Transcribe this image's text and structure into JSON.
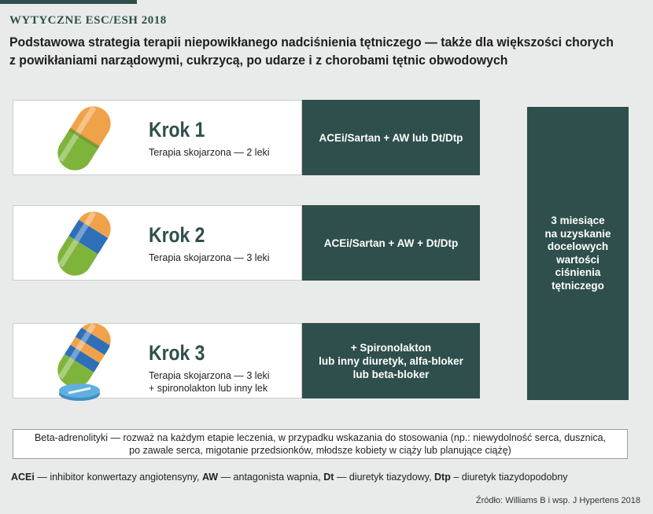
{
  "header": {
    "tag": "WYTYCZNE ESC/ESH 2018",
    "title_line1": "Podstawowa strategia terapii niepowikłanego nadciśnienia tętniczego — także dla większości chorych",
    "title_line2": "z powikłaniami narządowymi, cukrzycą, po udarze i z chorobami tętnic obwodowych"
  },
  "steps": [
    {
      "heading": "Krok 1",
      "desc_lines": [
        "Terapia skojarzona — 2 leki"
      ],
      "therapy_lines": [
        "ACEi/Sartan  +  AW lub Dt/Dtp"
      ]
    },
    {
      "heading": "Krok 2",
      "desc_lines": [
        "Terapia skojarzona — 3 leki"
      ],
      "therapy_lines": [
        "ACEi/Sartan  +  AW + Dt/Dtp"
      ]
    },
    {
      "heading": "Krok 3",
      "desc_lines": [
        "Terapia skojarzona — 3 leki",
        "+ spironolakton lub inny lek"
      ],
      "therapy_lines": [
        "+ Spironolakton",
        "lub inny diuretyk, alfa-bloker",
        "lub beta-bloker"
      ]
    }
  ],
  "target": {
    "lines": [
      "3 miesiące",
      "na uzyskanie",
      "docelowych",
      "wartości",
      "ciśnienia",
      "tętniczego"
    ]
  },
  "note": {
    "line1": "Beta-adrenolityki — rozważ na każdym etapie leczenia, w przypadku wskazania do stosowania (np.: niewydolność serca, dusznica,",
    "line2": "po zawale serca, migotanie przedsionków, młodsze kobiety w ciąży lub planujące ciążę)"
  },
  "legend": {
    "acei_abbr": "ACEi",
    "acei_text": " — inhibitor konwertazy angiotensyny, ",
    "aw_abbr": "AW",
    "aw_text": " — antagonista wapnia, ",
    "dt_abbr": "Dt",
    "dt_text": " — diuretyk tiazydowy, ",
    "dtp_abbr": "Dtp",
    "dtp_text": " – diuretyk tiazydopodobny"
  },
  "source": "Źródło: Williams B i wsp. J Hypertens 2018",
  "colors": {
    "dark_teal": "#2e4f4b",
    "pill_orange": "#f0a24a",
    "pill_green": "#7fb43a",
    "pill_blue": "#2f6fb8",
    "tablet_blue": "#5fb0de"
  }
}
